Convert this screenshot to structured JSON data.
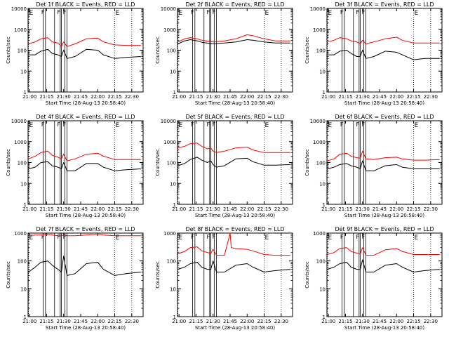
{
  "x_tick_labels": [
    "21:00",
    "21:15",
    "21:30",
    "21:45",
    "22:00",
    "22:15",
    "22:30"
  ],
  "y_tick_labels": [
    "1",
    "10",
    "100",
    "1000",
    "10000"
  ],
  "xlabel": "Start Time (28-Aug-13 20:58:40)",
  "ylabel": "Counts/sec",
  "marker_labels": [
    "E",
    "F",
    "E"
  ],
  "colors": {
    "events": "#000000",
    "lld": "#ff0000",
    "background": "#ffffff"
  },
  "chart_data": [
    {
      "type": "line",
      "title": "Det 1f BLACK = Events, RED = LLD",
      "x_range": [
        "20:58:40",
        "22:40:00"
      ],
      "ylim": [
        1,
        10000
      ],
      "yscale": "log",
      "ytick_max": 10000,
      "markers": {
        "E_left": "20:59",
        "F_lines": [
          "21:12",
          "21:14",
          "21:22",
          "21:27",
          "21:28",
          "21:31",
          "21:33"
        ],
        "E_right": "22:15"
      },
      "series": [
        {
          "color": "#000000",
          "x": [
            "20:59",
            "21:05",
            "21:10",
            "21:16",
            "21:20",
            "21:25",
            "21:28",
            "21:30",
            "21:33",
            "21:40",
            "21:50",
            "22:00",
            "22:05",
            "22:15",
            "22:25",
            "22:38"
          ],
          "values": [
            60,
            60,
            90,
            110,
            70,
            60,
            50,
            100,
            40,
            50,
            110,
            100,
            60,
            40,
            45,
            50
          ]
        },
        {
          "color": "#ff0000",
          "x": [
            "20:59",
            "21:05",
            "21:10",
            "21:16",
            "21:20",
            "21:25",
            "21:28",
            "21:30",
            "21:33",
            "21:40",
            "21:50",
            "22:00",
            "22:05",
            "22:15",
            "22:25",
            "22:38"
          ],
          "values": [
            200,
            250,
            350,
            400,
            250,
            220,
            150,
            250,
            150,
            200,
            350,
            380,
            250,
            180,
            170,
            170
          ]
        }
      ]
    },
    {
      "type": "line",
      "title": "Det 2f BLACK = Events, RED = LLD",
      "x_range": [
        "20:58:40",
        "22:40:00"
      ],
      "ylim": [
        1,
        10000
      ],
      "yscale": "log",
      "ytick_max": 10000,
      "markers": {
        "E_left": "20:59",
        "F_lines": [
          "21:12",
          "21:14",
          "21:22",
          "21:27",
          "21:28",
          "21:31",
          "21:33"
        ],
        "E_right": "22:15"
      },
      "series": [
        {
          "color": "#000000",
          "x": [
            "20:59",
            "21:05",
            "21:10",
            "21:16",
            "21:20",
            "21:30",
            "21:40",
            "21:50",
            "22:00",
            "22:05",
            "22:15",
            "22:25",
            "22:38"
          ],
          "values": [
            200,
            280,
            320,
            280,
            240,
            200,
            220,
            250,
            320,
            300,
            250,
            220,
            220
          ]
        },
        {
          "color": "#ff0000",
          "x": [
            "20:59",
            "21:05",
            "21:10",
            "21:16",
            "21:20",
            "21:30",
            "21:40",
            "21:50",
            "22:00",
            "22:05",
            "22:15",
            "22:25",
            "22:38"
          ],
          "values": [
            250,
            350,
            400,
            350,
            300,
            250,
            280,
            350,
            550,
            500,
            350,
            280,
            280
          ]
        }
      ]
    },
    {
      "type": "line",
      "title": "Det 3f BLACK = Events, RED = LLD",
      "x_range": [
        "20:58:40",
        "22:40:00"
      ],
      "ylim": [
        1,
        10000
      ],
      "yscale": "log",
      "ytick_max": 10000,
      "markers": {
        "E_left": "20:59",
        "F_lines": [
          "21:12",
          "21:14",
          "21:22",
          "21:27",
          "21:28",
          "21:31",
          "21:33"
        ],
        "E_right": "22:15"
      },
      "series": [
        {
          "color": "#000000",
          "x": [
            "20:59",
            "21:05",
            "21:10",
            "21:16",
            "21:20",
            "21:25",
            "21:28",
            "21:30",
            "21:33",
            "21:40",
            "21:50",
            "22:00",
            "22:05",
            "22:15",
            "22:25",
            "22:38"
          ],
          "values": [
            60,
            60,
            90,
            100,
            70,
            50,
            50,
            100,
            40,
            50,
            90,
            80,
            60,
            35,
            40,
            40
          ]
        },
        {
          "color": "#ff0000",
          "x": [
            "20:59",
            "21:05",
            "21:10",
            "21:16",
            "21:20",
            "21:25",
            "21:28",
            "21:30",
            "21:33",
            "21:40",
            "21:50",
            "22:00",
            "22:05",
            "22:15",
            "22:25",
            "22:38"
          ],
          "values": [
            250,
            300,
            400,
            350,
            280,
            250,
            200,
            300,
            200,
            250,
            350,
            420,
            300,
            220,
            220,
            220
          ]
        }
      ]
    },
    {
      "type": "line",
      "title": "Det 4f BLACK = Events, RED = LLD",
      "x_range": [
        "20:58:40",
        "22:40:00"
      ],
      "ylim": [
        1,
        10000
      ],
      "yscale": "log",
      "ytick_max": 10000,
      "markers": {
        "E_left": "20:59",
        "F_lines": [
          "21:12",
          "21:14",
          "21:22",
          "21:27",
          "21:28",
          "21:31",
          "21:33"
        ],
        "E_right": "22:15"
      },
      "series": [
        {
          "color": "#000000",
          "x": [
            "20:59",
            "21:05",
            "21:10",
            "21:16",
            "21:20",
            "21:25",
            "21:28",
            "21:30",
            "21:33",
            "21:40",
            "21:50",
            "22:00",
            "22:05",
            "22:15",
            "22:25",
            "22:38"
          ],
          "values": [
            50,
            60,
            100,
            110,
            70,
            60,
            50,
            100,
            40,
            40,
            90,
            90,
            60,
            40,
            45,
            50
          ]
        },
        {
          "color": "#ff0000",
          "x": [
            "20:59",
            "21:05",
            "21:10",
            "21:16",
            "21:20",
            "21:25",
            "21:28",
            "21:30",
            "21:33",
            "21:40",
            "21:50",
            "22:00",
            "22:05",
            "22:15",
            "22:25",
            "22:38"
          ],
          "values": [
            150,
            200,
            300,
            350,
            220,
            180,
            150,
            250,
            120,
            150,
            250,
            280,
            200,
            140,
            140,
            140
          ]
        }
      ]
    },
    {
      "type": "line",
      "title": "Det 5f BLACK = Events, RED = LLD",
      "x_range": [
        "20:58:40",
        "22:40:00"
      ],
      "ylim": [
        1,
        10000
      ],
      "yscale": "log",
      "ytick_max": 10000,
      "markers": {
        "E_left": "20:59",
        "F_lines": [
          "21:12",
          "21:14",
          "21:22",
          "21:27",
          "21:28",
          "21:31",
          "21:33"
        ],
        "E_right": "22:15"
      },
      "series": [
        {
          "color": "#000000",
          "x": [
            "20:59",
            "21:05",
            "21:10",
            "21:16",
            "21:20",
            "21:25",
            "21:28",
            "21:30",
            "21:33",
            "21:40",
            "21:50",
            "22:00",
            "22:05",
            "22:15",
            "22:25",
            "22:38"
          ],
          "values": [
            70,
            90,
            140,
            180,
            130,
            100,
            120,
            80,
            60,
            70,
            150,
            160,
            110,
            75,
            75,
            80
          ]
        },
        {
          "color": "#ff0000",
          "x": [
            "20:59",
            "21:05",
            "21:10",
            "21:16",
            "21:20",
            "21:25",
            "21:28",
            "21:30",
            "21:33",
            "21:40",
            "21:50",
            "22:00",
            "22:05",
            "22:15",
            "22:25",
            "22:38"
          ],
          "values": [
            500,
            600,
            800,
            850,
            600,
            450,
            500,
            350,
            300,
            350,
            500,
            550,
            400,
            300,
            300,
            300
          ]
        }
      ]
    },
    {
      "type": "line",
      "title": "Det 6f BLACK = Events, RED = LLD",
      "x_range": [
        "20:58:40",
        "22:40:00"
      ],
      "ylim": [
        1,
        10000
      ],
      "yscale": "log",
      "ytick_max": 10000,
      "markers": {
        "E_left": "20:59",
        "F_lines": [
          "21:12",
          "21:14",
          "21:22",
          "21:27",
          "21:28",
          "21:31",
          "21:33"
        ],
        "E_right": "22:15"
      },
      "series": [
        {
          "color": "#000000",
          "x": [
            "20:59",
            "21:05",
            "21:10",
            "21:16",
            "21:20",
            "21:25",
            "21:28",
            "21:30",
            "21:33",
            "21:40",
            "21:50",
            "22:00",
            "22:05",
            "22:15",
            "22:25",
            "22:38"
          ],
          "values": [
            50,
            60,
            80,
            90,
            70,
            60,
            50,
            120,
            40,
            40,
            70,
            80,
            60,
            50,
            50,
            50
          ]
        },
        {
          "color": "#ff0000",
          "x": [
            "20:59",
            "21:05",
            "21:10",
            "21:16",
            "21:20",
            "21:25",
            "21:28",
            "21:30",
            "21:33",
            "21:40",
            "21:50",
            "22:00",
            "22:05",
            "22:15",
            "22:25",
            "22:38"
          ],
          "values": [
            120,
            150,
            250,
            280,
            200,
            170,
            160,
            350,
            150,
            140,
            170,
            180,
            150,
            130,
            130,
            140
          ]
        }
      ]
    },
    {
      "type": "line",
      "title": "Det 7f BLACK = Events, RED = LLD",
      "x_range": [
        "20:58:40",
        "22:40:00"
      ],
      "ylim": [
        1,
        1000
      ],
      "yscale": "log",
      "ytick_max": 1000,
      "markers": {
        "E_left": "20:59",
        "F_lines": [
          "21:12",
          "21:14",
          "21:22",
          "21:27",
          "21:28",
          "21:31",
          "21:33"
        ],
        "E_right": "22:15"
      },
      "series": [
        {
          "color": "#000000",
          "x": [
            "20:59",
            "21:05",
            "21:10",
            "21:16",
            "21:20",
            "21:25",
            "21:28",
            "21:30",
            "21:33",
            "21:40",
            "21:50",
            "22:00",
            "22:05",
            "22:15",
            "22:25",
            "22:38"
          ],
          "values": [
            40,
            60,
            90,
            100,
            70,
            50,
            40,
            150,
            30,
            35,
            80,
            90,
            50,
            30,
            35,
            40
          ]
        },
        {
          "color": "#ff0000",
          "x": [
            "20:59",
            "21:05",
            "21:10",
            "21:16",
            "21:20",
            "21:25",
            "21:28",
            "21:30",
            "21:33",
            "21:40",
            "21:50",
            "22:00",
            "22:05",
            "22:15",
            "22:25",
            "22:38"
          ],
          "values": [
            800,
            850,
            850,
            900,
            850,
            800,
            800,
            850,
            800,
            800,
            850,
            900,
            850,
            800,
            800,
            800
          ]
        }
      ]
    },
    {
      "type": "line",
      "title": "Det 8f BLACK = Events, RED = LLD",
      "x_range": [
        "20:58:40",
        "22:40:00"
      ],
      "ylim": [
        1,
        1000
      ],
      "yscale": "log",
      "ytick_max": 1000,
      "markers": {
        "E_left": "20:59",
        "F_lines": [
          "21:12",
          "21:14",
          "21:22",
          "21:27",
          "21:28",
          "21:31",
          "21:33"
        ],
        "E_right": "22:15"
      },
      "series": [
        {
          "color": "#000000",
          "x": [
            "20:59",
            "21:05",
            "21:10",
            "21:16",
            "21:20",
            "21:25",
            "21:28",
            "21:30",
            "21:33",
            "21:40",
            "21:50",
            "22:00",
            "22:05",
            "22:15",
            "22:25",
            "22:38"
          ],
          "values": [
            50,
            60,
            80,
            90,
            60,
            50,
            50,
            100,
            40,
            40,
            70,
            80,
            60,
            40,
            45,
            50
          ]
        },
        {
          "color": "#ff0000",
          "x": [
            "20:59",
            "21:05",
            "21:10",
            "21:16",
            "21:20",
            "21:25",
            "21:28",
            "21:30",
            "21:33",
            "21:40",
            "21:45",
            "21:46",
            "21:50",
            "22:00",
            "22:05",
            "22:15",
            "22:25",
            "22:38"
          ],
          "values": [
            180,
            220,
            300,
            320,
            230,
            200,
            190,
            260,
            160,
            160,
            1000,
            300,
            280,
            260,
            230,
            170,
            160,
            160
          ]
        }
      ]
    },
    {
      "type": "line",
      "title": "Det 9f BLACK = Events, RED = LLD",
      "x_range": [
        "20:58:40",
        "22:40:00"
      ],
      "ylim": [
        1,
        1000
      ],
      "yscale": "log",
      "ytick_max": 1000,
      "markers": {
        "E_left": "20:59",
        "F_lines": [
          "21:12",
          "21:14",
          "21:22",
          "21:27",
          "21:28",
          "21:31",
          "21:33"
        ],
        "E_right": "22:15"
      },
      "series": [
        {
          "color": "#000000",
          "x": [
            "20:59",
            "21:05",
            "21:10",
            "21:16",
            "21:20",
            "21:25",
            "21:28",
            "21:30",
            "21:33",
            "21:40",
            "21:50",
            "22:00",
            "22:05",
            "22:15",
            "22:25",
            "22:38"
          ],
          "values": [
            50,
            60,
            80,
            90,
            60,
            50,
            50,
            110,
            40,
            40,
            70,
            80,
            60,
            40,
            45,
            50
          ]
        },
        {
          "color": "#ff0000",
          "x": [
            "20:59",
            "21:05",
            "21:10",
            "21:16",
            "21:20",
            "21:25",
            "21:28",
            "21:30",
            "21:33",
            "21:40",
            "21:50",
            "22:00",
            "22:05",
            "22:15",
            "22:25",
            "22:38"
          ],
          "values": [
            170,
            200,
            280,
            300,
            220,
            190,
            180,
            300,
            160,
            160,
            250,
            280,
            220,
            170,
            170,
            170
          ]
        }
      ]
    }
  ]
}
